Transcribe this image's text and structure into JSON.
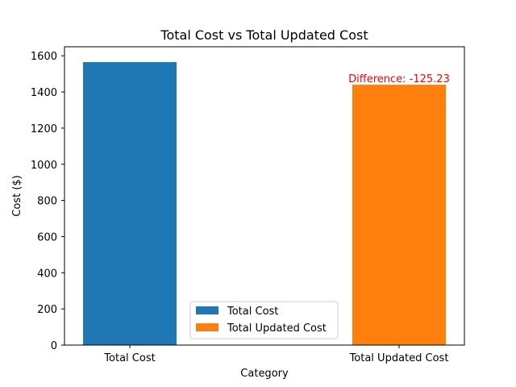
{
  "chart_data": {
    "type": "bar",
    "title": "Total Cost vs Total Updated Cost",
    "xlabel": "Category",
    "ylabel": "Cost ($)",
    "categories": [
      "Total Cost",
      "Total Updated Cost"
    ],
    "values": [
      1565,
      1440
    ],
    "colors": [
      "#1f77b4",
      "#ff7f0e"
    ],
    "ylim": [
      0,
      1650
    ],
    "yticks": [
      0,
      200,
      400,
      600,
      800,
      1000,
      1200,
      1400,
      1600
    ],
    "grid": false,
    "annotation": {
      "text": "Difference: -125.23",
      "color": "#ff0000",
      "category": "Total Updated Cost"
    },
    "legend": {
      "placement": "lower-center",
      "entries": [
        {
          "label": "Total Cost",
          "color": "#1f77b4"
        },
        {
          "label": "Total Updated Cost",
          "color": "#ff7f0e"
        }
      ]
    }
  }
}
